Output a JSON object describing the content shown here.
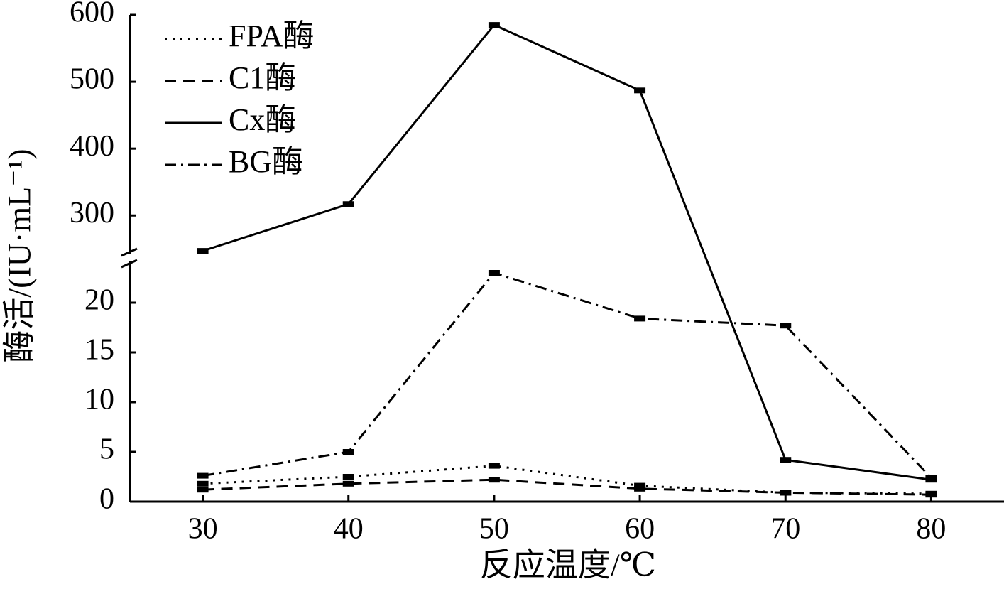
{
  "chart_data": {
    "type": "line",
    "x_label": "反应温度/℃",
    "y_label": "酶活/(IU·mL⁻¹)",
    "x": [
      30,
      40,
      50,
      60,
      70,
      80
    ],
    "xlim": [
      25,
      85
    ],
    "xticks": [
      30,
      40,
      50,
      60,
      70,
      80
    ],
    "y_segments": [
      {
        "ylim": [
          0,
          24
        ],
        "yticks": [
          0,
          5,
          10,
          15,
          20
        ]
      },
      {
        "ylim": [
          245,
          600
        ],
        "yticks": [
          300,
          400,
          500,
          600
        ]
      }
    ],
    "legend": "top-left",
    "series": [
      {
        "name": "FPA酶",
        "color": "#000000",
        "dash": "dotted",
        "values": [
          1.8,
          2.5,
          3.6,
          1.6,
          0.9,
          0.8
        ]
      },
      {
        "name": "C1酶",
        "color": "#000000",
        "dash": "dashed",
        "values": [
          1.2,
          1.8,
          2.2,
          1.3,
          0.9,
          0.7
        ]
      },
      {
        "name": "Cx酶",
        "color": "#000000",
        "dash": "solid",
        "values": [
          247,
          317,
          585,
          487,
          4.2,
          2.2
        ]
      },
      {
        "name": "BG酶",
        "color": "#000000",
        "dash": "dashdot",
        "values": [
          2.6,
          5,
          23,
          18.4,
          17.7,
          2.4
        ]
      }
    ]
  }
}
